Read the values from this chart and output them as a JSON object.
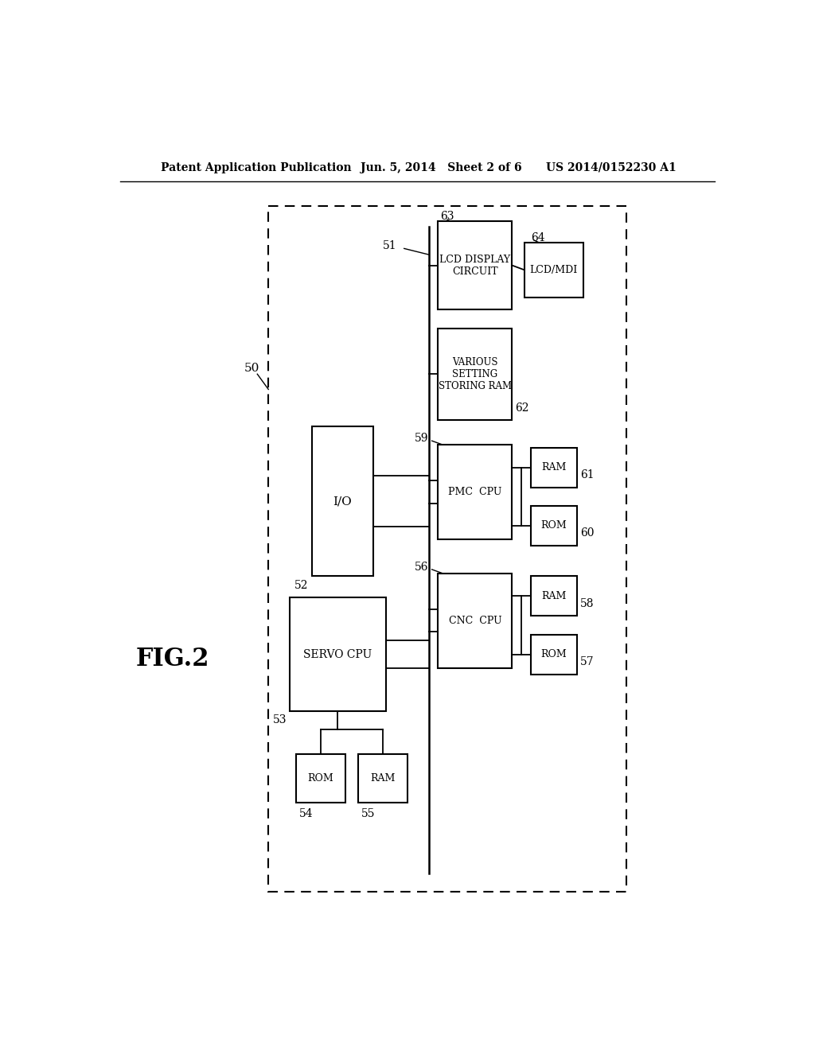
{
  "bg_color": "#ffffff",
  "header_left": "Patent Application Publication",
  "header_mid": "Jun. 5, 2014   Sheet 2 of 6",
  "header_right": "US 2014/0152230 A1",
  "fig_label": "FIG.2"
}
